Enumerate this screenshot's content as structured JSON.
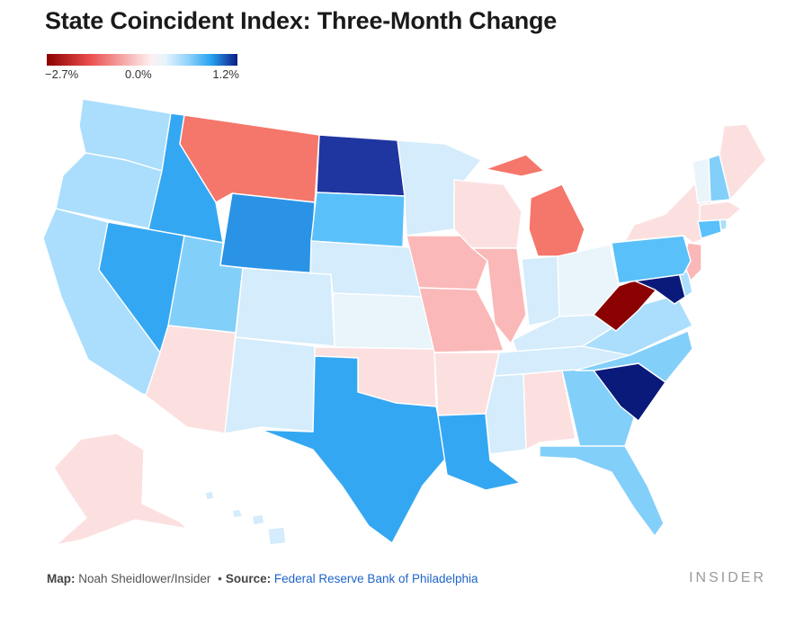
{
  "title": "State Coincident Index: Three-Month Change",
  "legend": {
    "min_label": "−2.7%",
    "mid_label": "0.0%",
    "max_label": "1.2%",
    "min_value": -2.7,
    "mid_value": 0.0,
    "max_value": 1.2
  },
  "footer": {
    "map_label": "Map:",
    "map_credit": "Noah Sheidlower/Insider",
    "separator": "•",
    "source_label": "Source:",
    "source_name": "Federal Reserve Bank of Philadelphia"
  },
  "brand": "INSIDER",
  "colors": {
    "deep_red": "#8b0000",
    "red": "#f5766a",
    "light_red": "#fbb8b8",
    "pale_red": "#fce0e0",
    "near_zero": "#eaf4fb",
    "pale_blue": "#d4ecfb",
    "light_blue": "#aadefc",
    "sky_blue": "#82cffa",
    "blue": "#59c0fa",
    "mid_blue": "#34a7f2",
    "strong_blue": "#2a93e6",
    "dark_blue": "#1f35a0",
    "navy": "#0a1a7a"
  },
  "states": [
    {
      "abbr": "WA",
      "color": "light_blue"
    },
    {
      "abbr": "OR",
      "color": "light_blue"
    },
    {
      "abbr": "CA",
      "color": "light_blue"
    },
    {
      "abbr": "ID",
      "color": "mid_blue"
    },
    {
      "abbr": "NV",
      "color": "mid_blue"
    },
    {
      "abbr": "MT",
      "color": "red"
    },
    {
      "abbr": "WY",
      "color": "strong_blue"
    },
    {
      "abbr": "UT",
      "color": "sky_blue"
    },
    {
      "abbr": "AZ",
      "color": "pale_red"
    },
    {
      "abbr": "CO",
      "color": "pale_blue"
    },
    {
      "abbr": "NM",
      "color": "pale_blue"
    },
    {
      "abbr": "ND",
      "color": "dark_blue"
    },
    {
      "abbr": "SD",
      "color": "blue"
    },
    {
      "abbr": "NE",
      "color": "pale_blue"
    },
    {
      "abbr": "KS",
      "color": "near_zero"
    },
    {
      "abbr": "OK",
      "color": "pale_red"
    },
    {
      "abbr": "TX",
      "color": "mid_blue"
    },
    {
      "abbr": "MN",
      "color": "pale_blue"
    },
    {
      "abbr": "IA",
      "color": "light_red"
    },
    {
      "abbr": "MO",
      "color": "light_red"
    },
    {
      "abbr": "AR",
      "color": "pale_red"
    },
    {
      "abbr": "LA",
      "color": "mid_blue"
    },
    {
      "abbr": "WI",
      "color": "pale_red"
    },
    {
      "abbr": "IL",
      "color": "light_red"
    },
    {
      "abbr": "MI",
      "color": "red"
    },
    {
      "abbr": "IN",
      "color": "pale_blue"
    },
    {
      "abbr": "OH",
      "color": "near_zero"
    },
    {
      "abbr": "KY",
      "color": "pale_blue"
    },
    {
      "abbr": "TN",
      "color": "pale_blue"
    },
    {
      "abbr": "MS",
      "color": "pale_blue"
    },
    {
      "abbr": "AL",
      "color": "pale_red"
    },
    {
      "abbr": "GA",
      "color": "sky_blue"
    },
    {
      "abbr": "FL",
      "color": "sky_blue"
    },
    {
      "abbr": "SC",
      "color": "navy"
    },
    {
      "abbr": "NC",
      "color": "sky_blue"
    },
    {
      "abbr": "VA",
      "color": "light_blue"
    },
    {
      "abbr": "WV",
      "color": "deep_red"
    },
    {
      "abbr": "MD",
      "color": "navy"
    },
    {
      "abbr": "DE",
      "color": "light_blue"
    },
    {
      "abbr": "NJ",
      "color": "light_red"
    },
    {
      "abbr": "PA",
      "color": "blue"
    },
    {
      "abbr": "NY",
      "color": "pale_red"
    },
    {
      "abbr": "CT",
      "color": "blue"
    },
    {
      "abbr": "RI",
      "color": "light_blue"
    },
    {
      "abbr": "MA",
      "color": "pale_red"
    },
    {
      "abbr": "VT",
      "color": "near_zero"
    },
    {
      "abbr": "NH",
      "color": "sky_blue"
    },
    {
      "abbr": "ME",
      "color": "pale_red"
    },
    {
      "abbr": "AK",
      "color": "pale_red"
    },
    {
      "abbr": "HI",
      "color": "pale_blue"
    }
  ]
}
